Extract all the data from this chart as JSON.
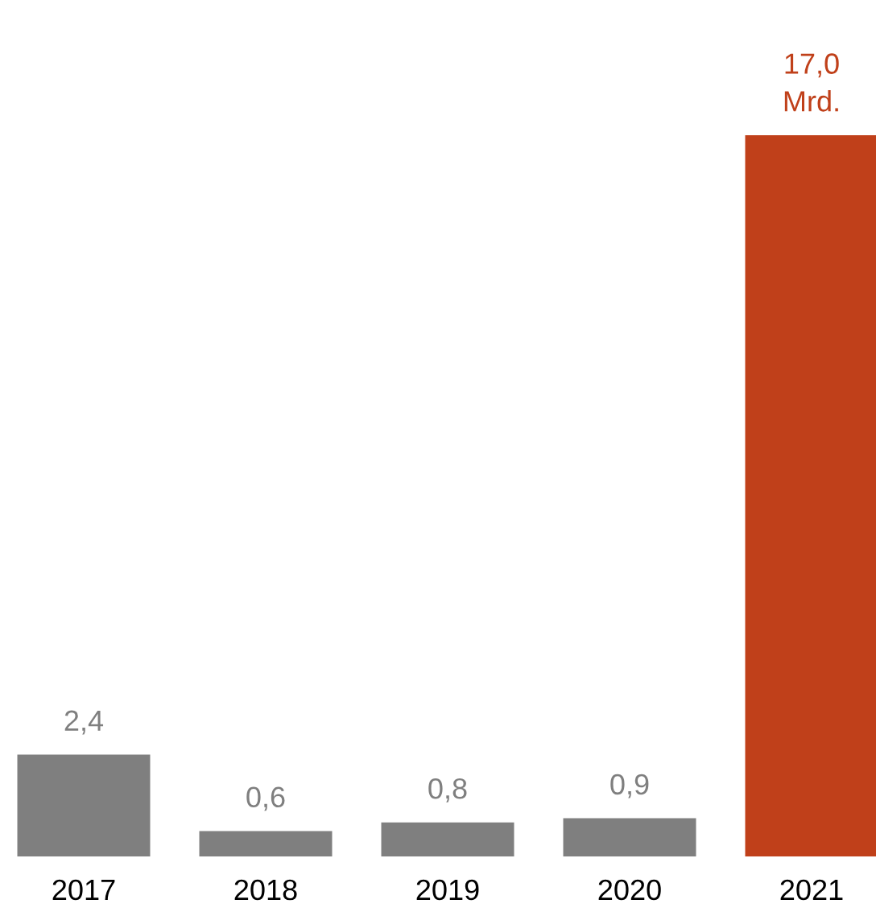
{
  "chart_data": {
    "type": "bar",
    "categories": [
      "2017",
      "2018",
      "2019",
      "2020",
      "2021"
    ],
    "values": [
      2.4,
      0.6,
      0.8,
      0.9,
      17.0
    ],
    "colors": [
      "#7f7f7f",
      "#7f7f7f",
      "#7f7f7f",
      "#7f7f7f",
      "#c0401a"
    ],
    "value_labels": [
      "2,4",
      "0,6",
      "0,8",
      "0,9",
      "17,0\nMrd."
    ],
    "grid": false,
    "legend": false
  }
}
